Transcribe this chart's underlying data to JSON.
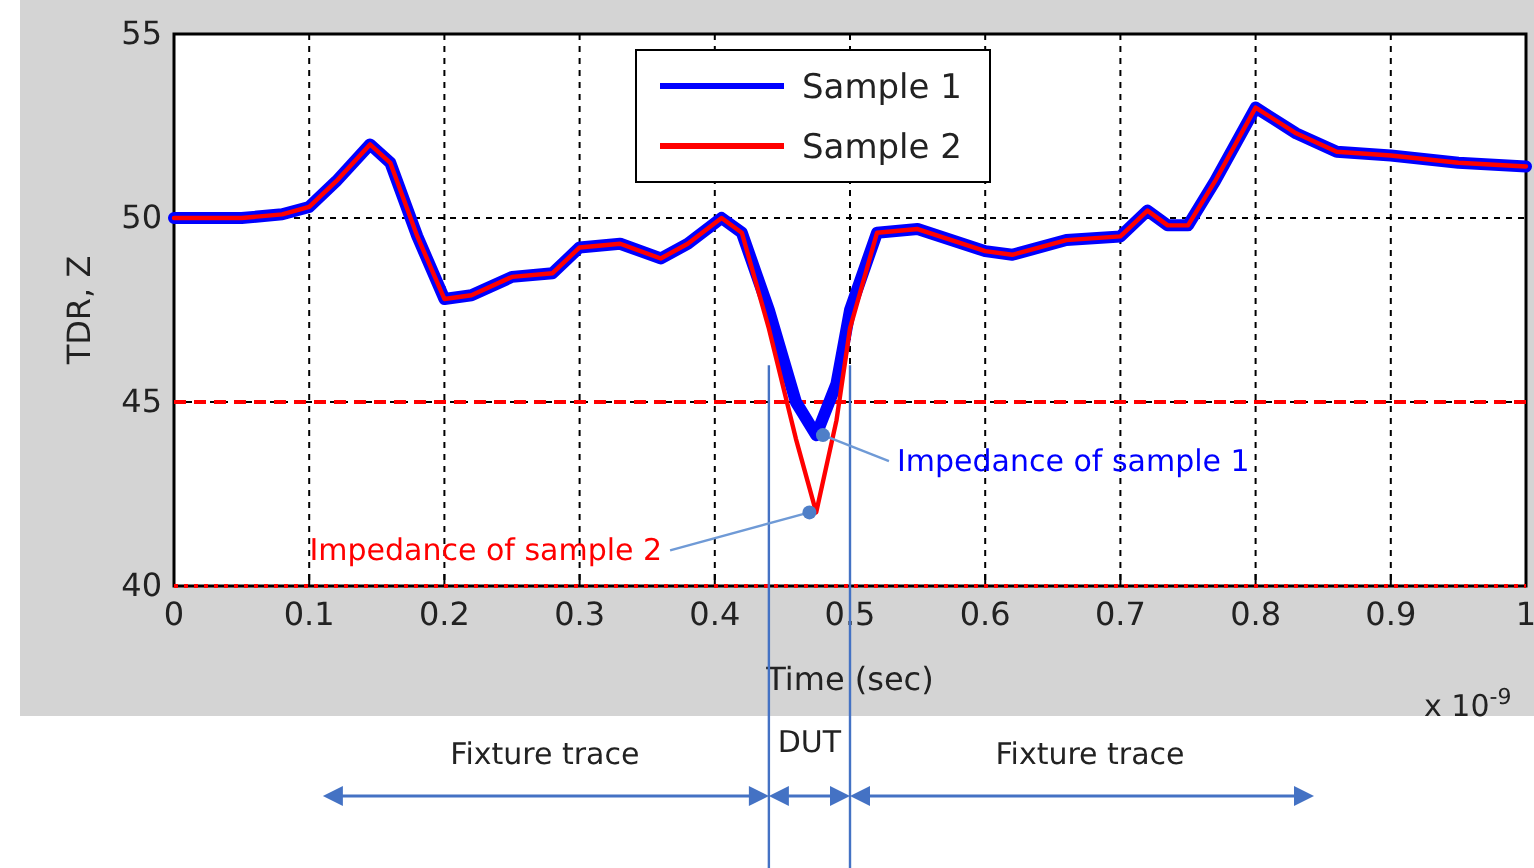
{
  "chart_data": {
    "type": "line",
    "xlabel": "Time (sec)",
    "ylabel": "TDR, Z",
    "x": [
      0,
      0.05,
      0.08,
      0.1,
      0.12,
      0.145,
      0.16,
      0.18,
      0.2,
      0.22,
      0.25,
      0.28,
      0.3,
      0.33,
      0.36,
      0.38,
      0.405,
      0.42,
      0.44,
      0.46,
      0.475,
      0.49,
      0.5,
      0.52,
      0.55,
      0.6,
      0.62,
      0.66,
      0.7,
      0.72,
      0.735,
      0.75,
      0.77,
      0.8,
      0.83,
      0.86,
      0.9,
      0.95,
      1
    ],
    "series": [
      {
        "name": "Sample 1",
        "color": "#0000ff",
        "values": [
          50,
          50,
          50.1,
          50.3,
          51,
          52,
          51.5,
          49.5,
          47.8,
          47.9,
          48.4,
          48.5,
          49.2,
          49.3,
          48.9,
          49.3,
          50,
          49.6,
          47.5,
          45,
          44.1,
          45.5,
          47.5,
          49.6,
          49.7,
          49.1,
          49,
          49.4,
          49.5,
          50.2,
          49.8,
          49.8,
          51,
          53,
          52.3,
          51.8,
          51.7,
          51.5,
          51.4
        ]
      },
      {
        "name": "Sample 2",
        "color": "#ff0000",
        "values": [
          50,
          50,
          50.1,
          50.3,
          51,
          52,
          51.5,
          49.5,
          47.8,
          47.9,
          48.4,
          48.5,
          49.2,
          49.3,
          48.9,
          49.3,
          50,
          49.6,
          47,
          44,
          42,
          44.5,
          47,
          49.6,
          49.7,
          49.1,
          49,
          49.4,
          49.5,
          50.2,
          49.8,
          49.8,
          51,
          53,
          52.3,
          51.8,
          51.7,
          51.5,
          51.4
        ]
      }
    ],
    "xlim": [
      0,
      1
    ],
    "xticks": [
      0,
      0.1,
      0.2,
      0.3,
      0.4,
      0.5,
      0.6,
      0.7,
      0.8,
      0.9,
      1
    ],
    "ylim": [
      40,
      55
    ],
    "yticks": [
      40,
      45,
      50,
      55
    ],
    "grid": true,
    "legend": "top",
    "line_style": "solid",
    "ref_lines": [
      {
        "axis": "y",
        "value": 45,
        "color": "#ff0000",
        "line_style": "dashed"
      },
      {
        "axis": "y",
        "value": 40,
        "color": "#ff0000",
        "line_style": "dotted"
      },
      {
        "axis": "x",
        "value": 0.44,
        "color": "#4472c4"
      },
      {
        "axis": "x",
        "value": 0.5,
        "color": "#4472c4"
      }
    ],
    "annotations": [
      {
        "text": "Impedance of sample 1",
        "x": 0.48,
        "y": 44.1
      },
      {
        "text": "Impedance of sample 2",
        "x": 0.47,
        "y": 42
      },
      "x 10$^{-9}$",
      "Fixture trace",
      "DUT",
      "Fixture trace"
    ]
  }
}
